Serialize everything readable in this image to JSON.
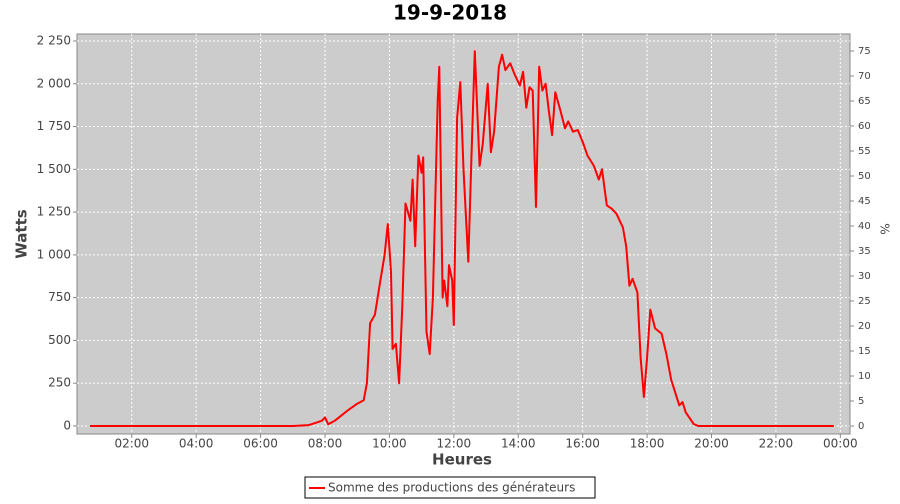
{
  "chart_data": {
    "type": "line",
    "title": "19-9-2018",
    "x_label": "Heures",
    "y_label": "Watts",
    "y2_label": "%",
    "xlim": [
      0.3,
      24.3
    ],
    "xticks": [
      {
        "value": 2,
        "label": "02:00"
      },
      {
        "value": 4,
        "label": "04:00"
      },
      {
        "value": 6,
        "label": "06:00"
      },
      {
        "value": 8,
        "label": "08:00"
      },
      {
        "value": 10,
        "label": "10:00"
      },
      {
        "value": 12,
        "label": "12:00"
      },
      {
        "value": 14,
        "label": "14:00"
      },
      {
        "value": 16,
        "label": "16:00"
      },
      {
        "value": 18,
        "label": "18:00"
      },
      {
        "value": 20,
        "label": "20:00"
      },
      {
        "value": 22,
        "label": "22:00"
      },
      {
        "value": 24,
        "label": "00:00"
      }
    ],
    "ylim": [
      -47,
      2291
    ],
    "yticks": [
      0,
      250,
      500,
      750,
      {
        "value": 1000,
        "label": "1 000"
      },
      {
        "value": 1250,
        "label": "1 250"
      },
      {
        "value": 1500,
        "label": "1 500"
      },
      {
        "value": 1750,
        "label": "1 750"
      },
      {
        "value": 2000,
        "label": "2 000"
      },
      {
        "value": 2250,
        "label": "2 250"
      }
    ],
    "y2lim": [
      -1.6,
      78.4
    ],
    "y2ticks": [
      0,
      5,
      10,
      15,
      20,
      25,
      30,
      35,
      40,
      45,
      50,
      55,
      60,
      65,
      70,
      75
    ],
    "grid": true,
    "legend": "bottom",
    "x": [
      0.7,
      7.0,
      7.5,
      7.9,
      8.0,
      8.1,
      8.3,
      8.5,
      8.7,
      9.0,
      9.2,
      9.3,
      9.4,
      9.55,
      9.7,
      9.85,
      9.95,
      10.05,
      10.1,
      10.2,
      10.3,
      10.4,
      10.5,
      10.65,
      10.72,
      10.8,
      10.9,
      11.0,
      11.05,
      11.15,
      11.25,
      11.35,
      11.5,
      11.55,
      11.65,
      11.7,
      11.8,
      11.85,
      11.95,
      12.0,
      12.1,
      12.2,
      12.3,
      12.45,
      12.55,
      12.65,
      12.8,
      12.9,
      13.05,
      13.15,
      13.25,
      13.4,
      13.5,
      13.6,
      13.75,
      13.9,
      14.05,
      14.15,
      14.25,
      14.35,
      14.45,
      14.55,
      14.65,
      14.75,
      14.85,
      14.95,
      15.05,
      15.15,
      15.3,
      15.45,
      15.55,
      15.7,
      15.85,
      16.0,
      16.15,
      16.35,
      16.5,
      16.6,
      16.75,
      16.9,
      17.05,
      17.25,
      17.35,
      17.45,
      17.55,
      17.7,
      17.8,
      17.9,
      18.0,
      18.1,
      18.25,
      18.45,
      18.6,
      18.75,
      19.0,
      19.1,
      19.2,
      19.45,
      19.6,
      23.8
    ],
    "series": [
      {
        "name": "Somme des productions des  générateurs",
        "color": "#ff0000",
        "values": [
          0,
          0,
          5,
          30,
          50,
          10,
          30,
          60,
          90,
          130,
          150,
          250,
          600,
          650,
          830,
          1000,
          1180,
          900,
          450,
          480,
          250,
          700,
          1300,
          1200,
          1440,
          1050,
          1580,
          1480,
          1570,
          550,
          420,
          750,
          1900,
          2100,
          750,
          850,
          700,
          940,
          850,
          590,
          1800,
          2010,
          1500,
          960,
          1600,
          2190,
          1520,
          1650,
          2000,
          1600,
          1720,
          2100,
          2170,
          2080,
          2120,
          2050,
          1990,
          2070,
          1860,
          1980,
          1960,
          1280,
          2100,
          1960,
          2000,
          1840,
          1700,
          1950,
          1850,
          1740,
          1780,
          1720,
          1730,
          1660,
          1580,
          1520,
          1440,
          1500,
          1290,
          1270,
          1240,
          1160,
          1050,
          820,
          860,
          780,
          400,
          170,
          400,
          680,
          570,
          540,
          420,
          270,
          120,
          140,
          80,
          10,
          0,
          0
        ]
      }
    ]
  }
}
